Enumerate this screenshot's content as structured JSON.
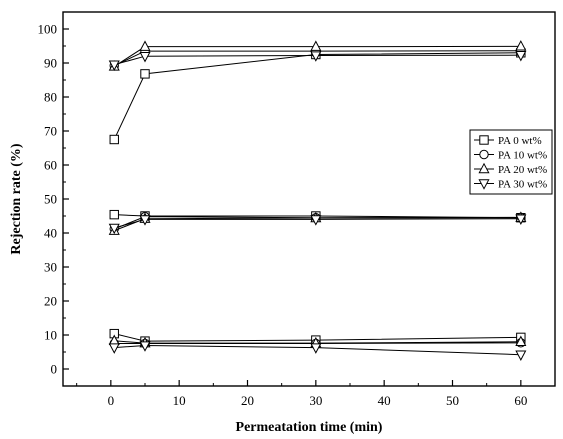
{
  "chart_data": {
    "type": "line",
    "title": "",
    "xlabel": "Permeatation time (min)",
    "ylabel": "Rejection rate (%)",
    "xlim": [
      -7,
      65
    ],
    "ylim": [
      -5,
      105
    ],
    "xticks": [
      0,
      10,
      20,
      30,
      40,
      50,
      60
    ],
    "yticks": [
      0,
      10,
      20,
      30,
      40,
      50,
      60,
      70,
      80,
      90,
      100
    ],
    "grid": false,
    "legend_position": "right",
    "series": [
      {
        "name": "PA 0 wt%",
        "marker": "square",
        "groups": [
          {
            "x": [
              0.5,
              5,
              30,
              60
            ],
            "y": [
              67.5,
              86.8,
              92.5,
              93.0
            ]
          },
          {
            "x": [
              0.5,
              5,
              30,
              60
            ],
            "y": [
              45.4,
              45.0,
              45.0,
              44.5
            ]
          },
          {
            "x": [
              0.5,
              5,
              30,
              60
            ],
            "y": [
              10.4,
              8.2,
              8.5,
              9.3
            ]
          }
        ]
      },
      {
        "name": "PA 10 wt%",
        "marker": "circle",
        "groups": [
          {
            "x": [
              0.5,
              5,
              30,
              60
            ],
            "y": [
              89.2,
              93.5,
              93.5,
              93.6
            ]
          },
          {
            "x": [
              0.5,
              5,
              30,
              60
            ],
            "y": [
              41.2,
              44.8,
              44.5,
              44.6
            ]
          },
          {
            "x": [
              0.5,
              5,
              30,
              60
            ],
            "y": [
              7.5,
              7.5,
              7.5,
              7.7
            ]
          }
        ]
      },
      {
        "name": "PA 20 wt%",
        "marker": "triangle-up",
        "groups": [
          {
            "x": [
              0.5,
              5,
              30,
              60
            ],
            "y": [
              89.0,
              94.8,
              94.8,
              94.9
            ]
          },
          {
            "x": [
              0.5,
              5,
              30,
              60
            ],
            "y": [
              40.7,
              44.2,
              44.4,
              44.5
            ]
          },
          {
            "x": [
              0.5,
              5,
              30,
              60
            ],
            "y": [
              8.3,
              7.6,
              7.6,
              8.0
            ]
          }
        ]
      },
      {
        "name": "PA 30 wt%",
        "marker": "triangle-down",
        "groups": [
          {
            "x": [
              0.5,
              5,
              30,
              60
            ],
            "y": [
              89.5,
              92.0,
              92.2,
              92.3
            ]
          },
          {
            "x": [
              0.5,
              5,
              30,
              60
            ],
            "y": [
              41.5,
              44.0,
              44.0,
              44.2
            ]
          },
          {
            "x": [
              0.5,
              5,
              30,
              60
            ],
            "y": [
              6.3,
              6.9,
              6.3,
              4.2
            ]
          }
        ]
      }
    ]
  }
}
